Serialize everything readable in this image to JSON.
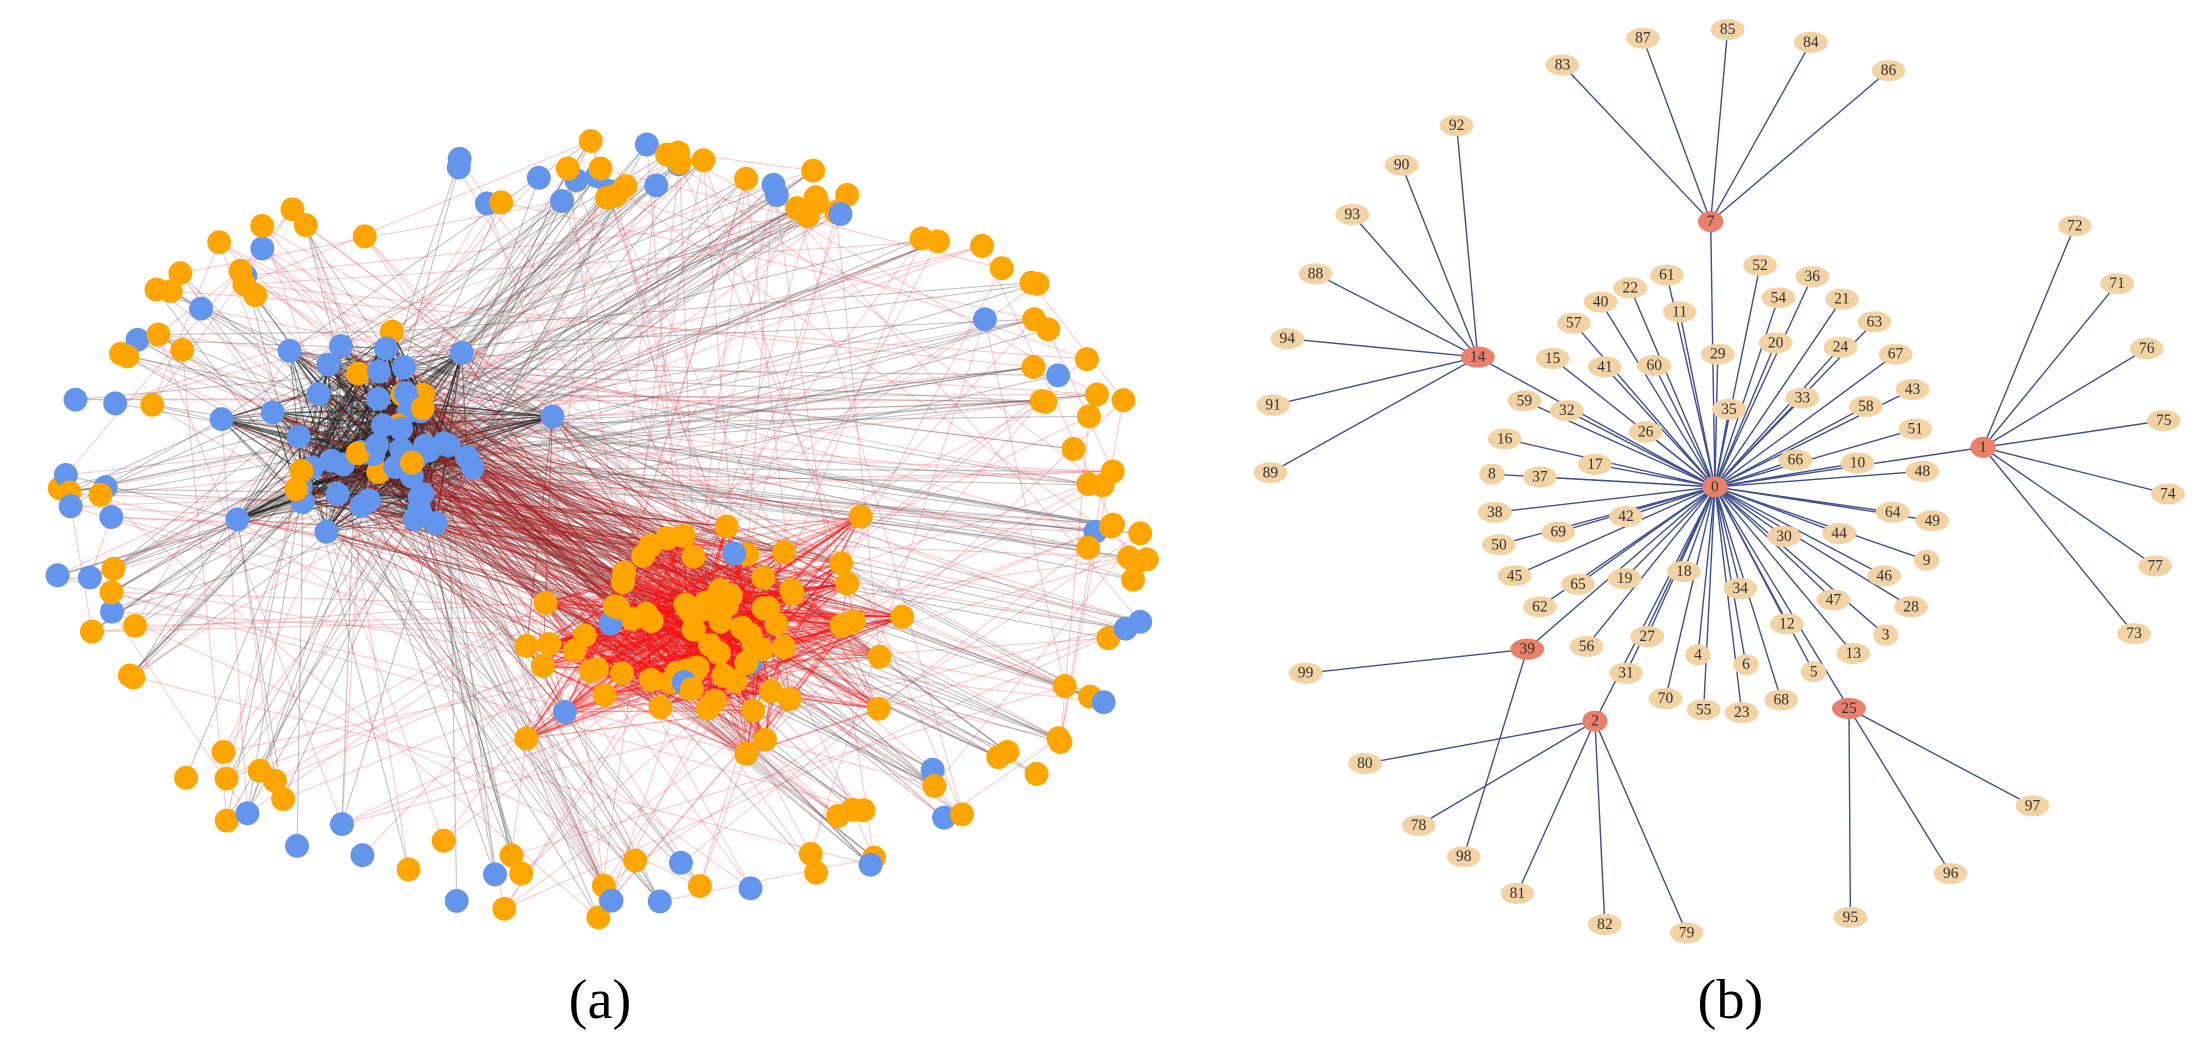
{
  "figure": {
    "panels": [
      {
        "caption": "(a)"
      },
      {
        "caption": "(b)",
        "graph": {
          "center": "0",
          "center_leaves": [
            "61",
            "52",
            "36",
            "22",
            "54",
            "40",
            "21",
            "11",
            "57",
            "63",
            "20",
            "29",
            "24",
            "15",
            "41",
            "60",
            "67",
            "33",
            "43",
            "59",
            "32",
            "35",
            "58",
            "26",
            "16",
            "51",
            "66",
            "10",
            "48",
            "8",
            "37",
            "17",
            "38",
            "42",
            "64",
            "49",
            "69",
            "50",
            "44",
            "30",
            "9",
            "45",
            "65",
            "19",
            "18",
            "46",
            "62",
            "47",
            "28",
            "34",
            "12",
            "3",
            "56",
            "27",
            "13",
            "4",
            "6",
            "5",
            "31",
            "70",
            "55",
            "23",
            "68"
          ],
          "hubs": [
            {
              "label": "7",
              "leaves": [
                "83",
                "87",
                "85",
                "84",
                "86"
              ]
            },
            {
              "label": "14",
              "leaves": [
                "92",
                "90",
                "93",
                "88",
                "94",
                "91",
                "89"
              ]
            },
            {
              "label": "1",
              "leaves": [
                "72",
                "71",
                "76",
                "75",
                "74",
                "77",
                "73"
              ]
            },
            {
              "label": "39",
              "leaves": [
                "99",
                "98"
              ]
            },
            {
              "label": "2",
              "leaves": [
                "80",
                "78",
                "81",
                "82",
                "79"
              ]
            },
            {
              "label": "25",
              "leaves": [
                "97",
                "96",
                "95"
              ]
            }
          ]
        }
      }
    ]
  }
}
